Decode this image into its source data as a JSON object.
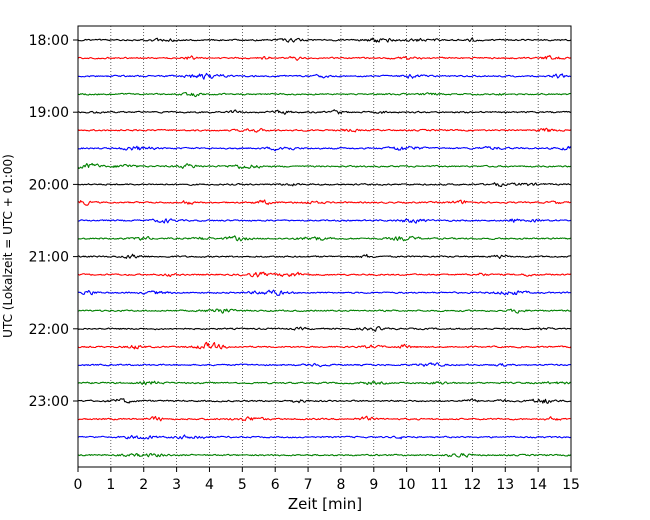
{
  "chart_data": {
    "type": "line",
    "chart_kind": "helicorder",
    "title": "",
    "xlabel": "Zeit  [min]",
    "ylabel": "UTC (Lokalzeit = UTC + 01:00)",
    "xlim": [
      0,
      15
    ],
    "x_ticks": [
      0,
      1,
      2,
      3,
      4,
      5,
      6,
      7,
      8,
      9,
      10,
      11,
      12,
      13,
      14,
      15
    ],
    "x_tick_labels": [
      "0",
      "1",
      "2",
      "3",
      "4",
      "5",
      "6",
      "7",
      "8",
      "9",
      "10",
      "11",
      "12",
      "13",
      "14",
      "15"
    ],
    "y_tick_labels": [
      "18:00",
      "19:00",
      "20:00",
      "21:00",
      "22:00",
      "23:00"
    ],
    "trace_start_times": [
      "18:00",
      "18:15",
      "18:30",
      "18:45",
      "19:00",
      "19:15",
      "19:30",
      "19:45",
      "20:00",
      "20:15",
      "20:30",
      "20:45",
      "21:00",
      "21:15",
      "21:30",
      "21:45",
      "22:00",
      "22:15",
      "22:30",
      "22:45",
      "23:00",
      "23:15",
      "23:30",
      "23:45"
    ],
    "trace_colors": [
      "#000000",
      "#ff0000",
      "#0000ff",
      "#008000"
    ],
    "grid": "vertical dotted lines at each minute",
    "legend": "none"
  }
}
